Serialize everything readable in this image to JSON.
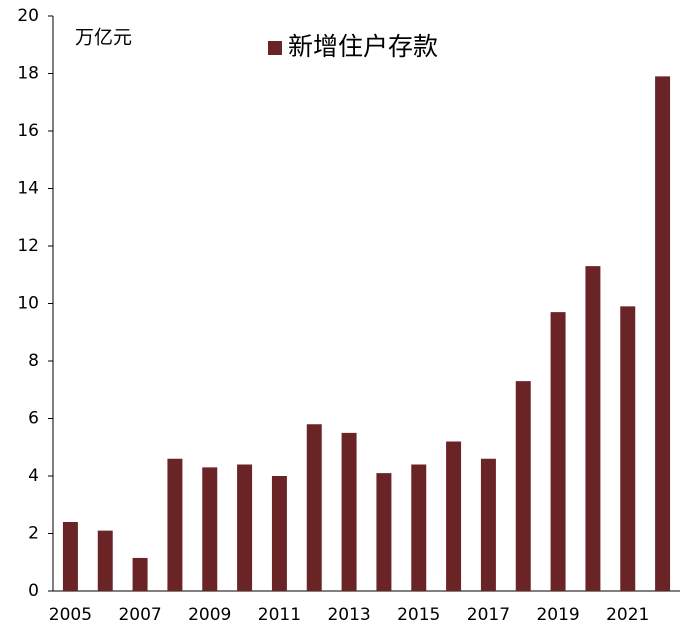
{
  "chart_data": {
    "type": "bar",
    "y_axis_unit": "万亿元",
    "categories": [
      "2005",
      null,
      "2007",
      null,
      "2009",
      null,
      "2011",
      null,
      "2013",
      null,
      "2015",
      null,
      "2017",
      null,
      "2019",
      null,
      "2021",
      null
    ],
    "series": [
      {
        "name": "新增住户存款",
        "color": "#6b2426",
        "values": [
          2.4,
          2.1,
          1.15,
          4.6,
          4.3,
          4.4,
          4.0,
          5.8,
          5.5,
          4.1,
          4.4,
          5.2,
          4.6,
          7.3,
          9.7,
          11.3,
          9.9,
          17.9
        ]
      }
    ],
    "ylim": [
      0,
      20
    ],
    "yticks": [
      0,
      2,
      4,
      6,
      8,
      10,
      12,
      14,
      16,
      18,
      20
    ],
    "grid": false,
    "legend_position": "top"
  }
}
